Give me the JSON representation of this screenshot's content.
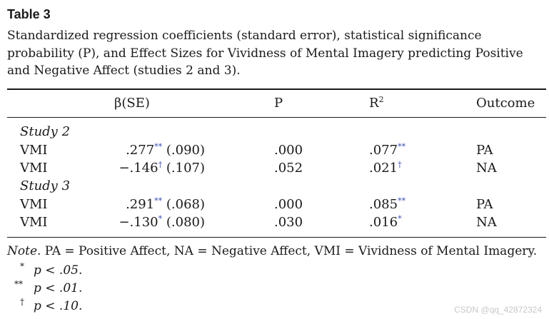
{
  "table": {
    "label": "Table 3",
    "caption": "Standardized regression coefficients (standard error), statistical significance probability (P), and Effect Sizes for Vividness of Mental Imagery predicting Positive and Negative Affect (studies 2 and 3).",
    "headers": {
      "beta": "β(SE)",
      "p": "P",
      "r2_base": "R",
      "r2_exp": "2",
      "outcome": "Outcome"
    },
    "groups": [
      {
        "name": "Study 2",
        "rows": [
          {
            "label": "VMI",
            "beta": ".277",
            "beta_sig": "**",
            "se": "(.090)",
            "p": ".000",
            "r2": ".077",
            "r2_sig": "**",
            "outcome": "PA"
          },
          {
            "label": "VMI",
            "beta": "−.146",
            "beta_sig": "†",
            "se": "(.107)",
            "p": ".052",
            "r2": ".021",
            "r2_sig": "†",
            "outcome": "NA"
          }
        ]
      },
      {
        "name": "Study 3",
        "rows": [
          {
            "label": "VMI",
            "beta": ".291",
            "beta_sig": "**",
            "se": "(.068)",
            "p": ".000",
            "r2": ".085",
            "r2_sig": "**",
            "outcome": "PA"
          },
          {
            "label": "VMI",
            "beta": "−.130",
            "beta_sig": "*",
            "se": "(.080)",
            "p": ".030",
            "r2": ".016",
            "r2_sig": "*",
            "outcome": "NA"
          }
        ]
      }
    ],
    "note_label": "Note.",
    "note_text": " PA = Positive Affect, NA = Negative Affect, VMI = Vividness of Mental Imagery.",
    "footnotes": [
      {
        "symbol": "*",
        "text": "p < .05."
      },
      {
        "symbol": "**",
        "text": "p < .01."
      },
      {
        "symbol": "†",
        "text": "p < .10."
      }
    ]
  },
  "watermark": "CSDN @qq_42872324"
}
